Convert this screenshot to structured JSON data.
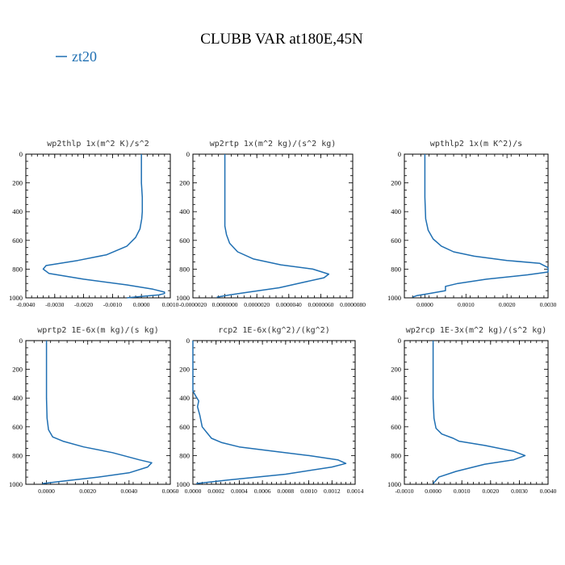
{
  "figure": {
    "title": "CLUBB VAR at180E,45N",
    "legend": {
      "label": "zt20",
      "color": "#1f6fb2"
    }
  },
  "chart_data": [
    {
      "type": "line",
      "title": "wp2thlp  1x(m^2 K)/s^2",
      "xlim": [
        -0.004,
        0.001
      ],
      "ylim": [
        0,
        1000
      ],
      "y_inverted": true,
      "xticks": [
        -0.004,
        -0.003,
        -0.002,
        -0.001,
        0,
        0.001
      ],
      "xtick_labels": [
        "-0.0040",
        "-0.0030",
        "-0.0020",
        "-0.0010",
        "0.0000",
        "0.0010"
      ],
      "yticks": [
        0,
        200,
        400,
        600,
        800,
        1000
      ],
      "ytick_labels": [
        "0",
        "200",
        "400",
        "600",
        "800",
        "1000"
      ],
      "series": [
        {
          "name": "zt20",
          "x": [
            0,
            0,
            3e-05,
            3e-05,
            1e-05,
            -5e-05,
            -0.0002,
            -0.0005,
            -0.0012,
            -0.0022,
            -0.0033,
            -0.0034,
            -0.0032,
            -0.002,
            -0.0005,
            0.0004,
            0.0008,
            0.0008,
            0.0006,
            0.0,
            -0.0005
          ],
          "y": [
            0,
            200,
            300,
            400,
            450,
            520,
            580,
            640,
            700,
            740,
            775,
            800,
            830,
            870,
            910,
            940,
            960,
            970,
            980,
            990,
            1000
          ]
        }
      ]
    },
    {
      "type": "line",
      "title": "wp2rtp  1x(m^2 kg)/(s^2 kg)",
      "xlim": [
        -2e-06,
        8e-06
      ],
      "ylim": [
        0,
        1000
      ],
      "y_inverted": true,
      "xticks": [
        -2e-06,
        0,
        2e-06,
        4e-06,
        6e-06,
        8e-06
      ],
      "xtick_labels": [
        "-0.0000020",
        "0.0000000",
        "0.0000020",
        "0.0000040",
        "0.0000060",
        "0.0000080"
      ],
      "yticks": [
        0,
        200,
        400,
        600,
        800,
        1000
      ],
      "ytick_labels": [
        "0",
        "200",
        "400",
        "600",
        "800",
        "1000"
      ],
      "series": [
        {
          "name": "zt20",
          "x": [
            0,
            0,
            0,
            1e-07,
            3e-07,
            8e-07,
            1.8e-06,
            3.5e-06,
            5.5e-06,
            6.5e-06,
            6.2e-06,
            5e-06,
            3.4e-06,
            1.5e-06,
            3e-07,
            -5e-07
          ],
          "y": [
            0,
            300,
            500,
            560,
            620,
            680,
            730,
            770,
            800,
            835,
            860,
            890,
            930,
            960,
            980,
            995
          ]
        }
      ]
    },
    {
      "type": "line",
      "title": "wpthlp2  1x(m K^2)/s",
      "xlim": [
        -0.0005,
        0.003
      ],
      "ylim": [
        0,
        1000
      ],
      "y_inverted": true,
      "xticks": [
        0,
        0.001,
        0.002,
        0.003
      ],
      "xtick_labels": [
        "0.0000",
        "0.0010",
        "0.0020",
        "0.0030"
      ],
      "yticks": [
        0,
        200,
        400,
        600,
        800,
        1000
      ],
      "ytick_labels": [
        "0",
        "200",
        "400",
        "600",
        "800",
        "1000"
      ],
      "series": [
        {
          "name": "zt20",
          "x": [
            0,
            0,
            2e-05,
            8e-05,
            0.0002,
            0.0004,
            0.0007,
            0.0012,
            0.002,
            0.0028,
            0.003,
            0.003,
            0.0025,
            0.0015,
            0.0008,
            0.0005,
            0.0005,
            0.0001,
            -0.0002,
            -0.0003
          ],
          "y": [
            0,
            300,
            450,
            530,
            590,
            640,
            680,
            710,
            740,
            760,
            790,
            820,
            840,
            870,
            900,
            920,
            950,
            970,
            985,
            995
          ]
        }
      ]
    },
    {
      "type": "line",
      "title": "wprtp2  1E-6x(m kg)/(s kg)",
      "xlim": [
        -0.001,
        0.006
      ],
      "ylim": [
        0,
        1000
      ],
      "y_inverted": true,
      "xticks": [
        0,
        0.002,
        0.004,
        0.006
      ],
      "xtick_labels": [
        "0.0000",
        "0.0020",
        "0.0040",
        "0.0060"
      ],
      "yticks": [
        0,
        200,
        400,
        600,
        800,
        1000
      ],
      "ytick_labels": [
        "0",
        "200",
        "400",
        "600",
        "800",
        "1000"
      ],
      "series": [
        {
          "name": "zt20",
          "x": [
            0,
            0,
            3e-05,
            0.0001,
            0.0003,
            0.0008,
            0.0018,
            0.0032,
            0.0045,
            0.0051,
            0.0049,
            0.004,
            0.0025,
            0.001,
            -0.0002
          ],
          "y": [
            0,
            400,
            540,
            620,
            670,
            700,
            740,
            780,
            830,
            850,
            880,
            920,
            950,
            975,
            995
          ]
        }
      ]
    },
    {
      "type": "line",
      "title": "rcp2  1E-6x(kg^2)/(kg^2)",
      "xlim": [
        0,
        0.0014
      ],
      "ylim": [
        0,
        1000
      ],
      "y_inverted": true,
      "xticks": [
        0,
        0.0002,
        0.0004,
        0.0006,
        0.0008,
        0.001,
        0.0012,
        0.0014
      ],
      "xtick_labels": [
        "0.0000",
        "0.0002",
        "0.0004",
        "0.0006",
        "0.0008",
        "0.0010",
        "0.0012",
        "0.0014"
      ],
      "yticks": [
        0,
        200,
        400,
        600,
        800,
        1000
      ],
      "ytick_labels": [
        "0",
        "200",
        "400",
        "600",
        "800",
        "1000"
      ],
      "series": [
        {
          "name": "zt20",
          "x": [
            0,
            0,
            2e-05,
            5e-05,
            4e-05,
            6e-05,
            8e-05,
            0.00012,
            0.00016,
            0.00025,
            0.0004,
            0.0007,
            0.001,
            0.00125,
            0.00132,
            0.0012,
            0.0008,
            0.0003,
            3e-05
          ],
          "y": [
            0,
            350,
            380,
            420,
            460,
            520,
            600,
            640,
            680,
            710,
            740,
            770,
            800,
            830,
            855,
            880,
            930,
            970,
            995
          ]
        }
      ]
    },
    {
      "type": "line",
      "title": "wp2rcp  1E-3x(m^2 kg)/(s^2 kg)",
      "xlim": [
        -0.001,
        0.004
      ],
      "ylim": [
        0,
        1000
      ],
      "y_inverted": true,
      "xticks": [
        -0.001,
        0,
        0.001,
        0.002,
        0.003,
        0.004
      ],
      "xtick_labels": [
        "-0.0010",
        "0.0000",
        "0.0010",
        "0.0020",
        "0.0030",
        "0.0040"
      ],
      "yticks": [
        0,
        200,
        400,
        600,
        800,
        1000
      ],
      "ytick_labels": [
        "0",
        "200",
        "400",
        "600",
        "800",
        "1000"
      ],
      "series": [
        {
          "name": "zt20",
          "x": [
            0,
            0,
            3e-05,
            0.0001,
            0.0003,
            0.0007,
            0.0009,
            0.0018,
            0.0028,
            0.0032,
            0.0028,
            0.0018,
            0.0008,
            0.0002,
            0.0
          ],
          "y": [
            0,
            400,
            540,
            610,
            650,
            680,
            700,
            730,
            770,
            800,
            830,
            860,
            910,
            950,
            995
          ]
        }
      ]
    }
  ]
}
